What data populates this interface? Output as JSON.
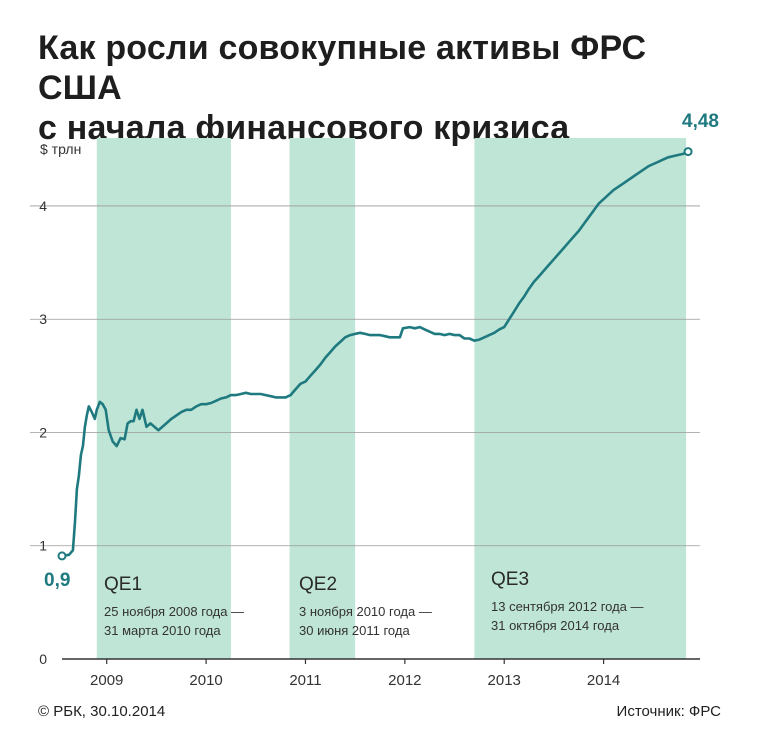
{
  "title_line1": "Как росли совокупные активы ФРС США",
  "title_line2": "с начала финансового кризиса",
  "footer": {
    "copyright": "© РБК, 30.10.2014",
    "source": "Источник: ФРС"
  },
  "colors": {
    "line": "#1f7a80",
    "band": "#bfe5d6",
    "grid": "#9a9a9a",
    "axis": "#333333",
    "label_accent": "#1f7a80"
  },
  "chart_data": {
    "type": "line",
    "title": "Как росли совокупные активы ФРС США с начала финансового кризиса",
    "ylabel": "$ трлн",
    "xlabel": "",
    "ylim": [
      0,
      4.6
    ],
    "xlim": [
      2008.55,
      2014.97
    ],
    "y_ticks": [
      {
        "value": 0,
        "label": "0"
      },
      {
        "value": 1,
        "label": "1"
      },
      {
        "value": 2,
        "label": "2"
      },
      {
        "value": 3,
        "label": "3"
      },
      {
        "value": 4,
        "label": "4"
      }
    ],
    "x_ticks": [
      {
        "value": 2009.0,
        "label": "2009"
      },
      {
        "value": 2010.0,
        "label": "2010"
      },
      {
        "value": 2011.0,
        "label": "2011"
      },
      {
        "value": 2012.0,
        "label": "2012"
      },
      {
        "value": 2013.0,
        "label": "2013"
      },
      {
        "value": 2014.0,
        "label": "2014"
      }
    ],
    "grid": true,
    "bands": [
      {
        "name": "QE1",
        "start": 2008.9,
        "end": 2010.25,
        "line1": "25 ноября 2008 года —",
        "line2": "31 марта 2010 года"
      },
      {
        "name": "QE2",
        "start": 2010.84,
        "end": 2011.5,
        "line1": "3 ноября 2010 года —",
        "line2": "30 июня 2011 года"
      },
      {
        "name": "QE3",
        "start": 2012.7,
        "end": 2014.83,
        "line1": "13 сентября 2012 года —",
        "line2": "31 октября 2014 года"
      }
    ],
    "endpoint_labels": {
      "start": "0,9",
      "end": "4,48"
    },
    "series": [
      {
        "points": [
          [
            2008.55,
            0.91
          ],
          [
            2008.62,
            0.92
          ],
          [
            2008.66,
            0.96
          ],
          [
            2008.68,
            1.2
          ],
          [
            2008.7,
            1.5
          ],
          [
            2008.72,
            1.62
          ],
          [
            2008.74,
            1.8
          ],
          [
            2008.76,
            1.88
          ],
          [
            2008.78,
            2.05
          ],
          [
            2008.8,
            2.15
          ],
          [
            2008.82,
            2.23
          ],
          [
            2008.85,
            2.18
          ],
          [
            2008.88,
            2.12
          ],
          [
            2008.9,
            2.2
          ],
          [
            2008.93,
            2.27
          ],
          [
            2008.96,
            2.25
          ],
          [
            2008.99,
            2.2
          ],
          [
            2009.02,
            2.02
          ],
          [
            2009.06,
            1.92
          ],
          [
            2009.1,
            1.88
          ],
          [
            2009.14,
            1.95
          ],
          [
            2009.18,
            1.94
          ],
          [
            2009.21,
            2.08
          ],
          [
            2009.24,
            2.1
          ],
          [
            2009.27,
            2.1
          ],
          [
            2009.3,
            2.2
          ],
          [
            2009.33,
            2.12
          ],
          [
            2009.36,
            2.2
          ],
          [
            2009.4,
            2.05
          ],
          [
            2009.44,
            2.08
          ],
          [
            2009.48,
            2.05
          ],
          [
            2009.52,
            2.02
          ],
          [
            2009.56,
            2.05
          ],
          [
            2009.6,
            2.08
          ],
          [
            2009.65,
            2.12
          ],
          [
            2009.7,
            2.15
          ],
          [
            2009.75,
            2.18
          ],
          [
            2009.8,
            2.2
          ],
          [
            2009.85,
            2.2
          ],
          [
            2009.9,
            2.23
          ],
          [
            2009.95,
            2.25
          ],
          [
            2010.0,
            2.25
          ],
          [
            2010.05,
            2.26
          ],
          [
            2010.1,
            2.28
          ],
          [
            2010.15,
            2.3
          ],
          [
            2010.2,
            2.31
          ],
          [
            2010.25,
            2.33
          ],
          [
            2010.3,
            2.33
          ],
          [
            2010.35,
            2.34
          ],
          [
            2010.4,
            2.35
          ],
          [
            2010.45,
            2.34
          ],
          [
            2010.5,
            2.34
          ],
          [
            2010.55,
            2.34
          ],
          [
            2010.6,
            2.33
          ],
          [
            2010.65,
            2.32
          ],
          [
            2010.7,
            2.31
          ],
          [
            2010.75,
            2.31
          ],
          [
            2010.8,
            2.31
          ],
          [
            2010.85,
            2.33
          ],
          [
            2010.9,
            2.38
          ],
          [
            2010.95,
            2.43
          ],
          [
            2011.0,
            2.45
          ],
          [
            2011.05,
            2.5
          ],
          [
            2011.1,
            2.55
          ],
          [
            2011.15,
            2.6
          ],
          [
            2011.2,
            2.66
          ],
          [
            2011.25,
            2.71
          ],
          [
            2011.3,
            2.76
          ],
          [
            2011.35,
            2.8
          ],
          [
            2011.4,
            2.84
          ],
          [
            2011.45,
            2.86
          ],
          [
            2011.5,
            2.87
          ],
          [
            2011.55,
            2.88
          ],
          [
            2011.6,
            2.87
          ],
          [
            2011.65,
            2.86
          ],
          [
            2011.7,
            2.86
          ],
          [
            2011.75,
            2.86
          ],
          [
            2011.8,
            2.85
          ],
          [
            2011.85,
            2.84
          ],
          [
            2011.9,
            2.84
          ],
          [
            2011.95,
            2.84
          ],
          [
            2011.98,
            2.92
          ],
          [
            2012.05,
            2.93
          ],
          [
            2012.1,
            2.92
          ],
          [
            2012.15,
            2.93
          ],
          [
            2012.2,
            2.91
          ],
          [
            2012.25,
            2.89
          ],
          [
            2012.3,
            2.87
          ],
          [
            2012.35,
            2.87
          ],
          [
            2012.4,
            2.86
          ],
          [
            2012.45,
            2.87
          ],
          [
            2012.5,
            2.86
          ],
          [
            2012.55,
            2.86
          ],
          [
            2012.6,
            2.83
          ],
          [
            2012.65,
            2.83
          ],
          [
            2012.7,
            2.81
          ],
          [
            2012.75,
            2.82
          ],
          [
            2012.8,
            2.84
          ],
          [
            2012.85,
            2.86
          ],
          [
            2012.9,
            2.88
          ],
          [
            2012.95,
            2.91
          ],
          [
            2013.0,
            2.93
          ],
          [
            2013.05,
            3.0
          ],
          [
            2013.1,
            3.07
          ],
          [
            2013.15,
            3.14
          ],
          [
            2013.2,
            3.2
          ],
          [
            2013.25,
            3.27
          ],
          [
            2013.3,
            3.33
          ],
          [
            2013.35,
            3.38
          ],
          [
            2013.4,
            3.43
          ],
          [
            2013.45,
            3.48
          ],
          [
            2013.5,
            3.53
          ],
          [
            2013.55,
            3.58
          ],
          [
            2013.6,
            3.63
          ],
          [
            2013.65,
            3.68
          ],
          [
            2013.7,
            3.73
          ],
          [
            2013.75,
            3.78
          ],
          [
            2013.8,
            3.84
          ],
          [
            2013.85,
            3.9
          ],
          [
            2013.9,
            3.96
          ],
          [
            2013.95,
            4.02
          ],
          [
            2014.0,
            4.06
          ],
          [
            2014.05,
            4.1
          ],
          [
            2014.1,
            4.14
          ],
          [
            2014.15,
            4.17
          ],
          [
            2014.2,
            4.2
          ],
          [
            2014.25,
            4.23
          ],
          [
            2014.3,
            4.26
          ],
          [
            2014.35,
            4.29
          ],
          [
            2014.4,
            4.32
          ],
          [
            2014.45,
            4.35
          ],
          [
            2014.5,
            4.37
          ],
          [
            2014.55,
            4.39
          ],
          [
            2014.6,
            4.41
          ],
          [
            2014.65,
            4.43
          ],
          [
            2014.7,
            4.44
          ],
          [
            2014.75,
            4.45
          ],
          [
            2014.8,
            4.46
          ],
          [
            2014.85,
            4.48
          ]
        ]
      }
    ]
  }
}
